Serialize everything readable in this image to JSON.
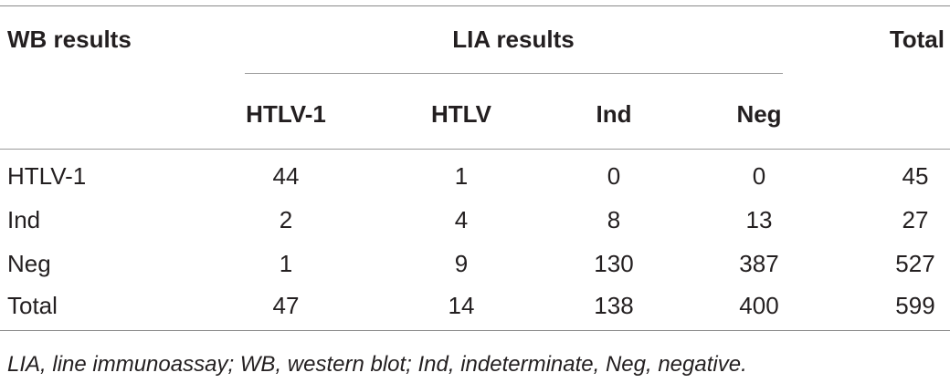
{
  "table": {
    "header": {
      "row_label": "WB results",
      "group_label": "LIA results",
      "total_label": "Total",
      "columns": [
        "HTLV-1",
        "HTLV",
        "Ind",
        "Neg"
      ]
    },
    "rows": [
      {
        "label": "HTLV-1",
        "values": [
          "44",
          "1",
          "0",
          "0"
        ],
        "total": "45"
      },
      {
        "label": "Ind",
        "values": [
          "2",
          "4",
          "8",
          "13"
        ],
        "total": "27"
      },
      {
        "label": "Neg",
        "values": [
          "1",
          "9",
          "130",
          "387"
        ],
        "total": "527"
      },
      {
        "label": "Total",
        "values": [
          "47",
          "14",
          "138",
          "400"
        ],
        "total": "599"
      }
    ]
  },
  "footnote": "LIA, line immunoassay; WB, western blot; Ind, indeterminate, Neg, negative."
}
